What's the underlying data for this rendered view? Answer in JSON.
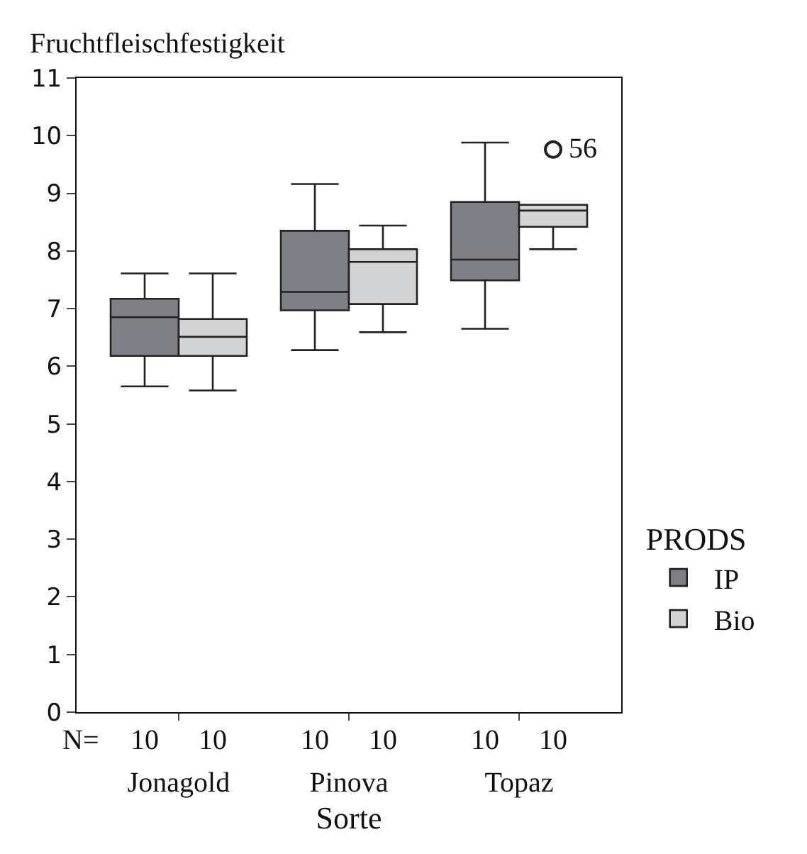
{
  "chart_data": {
    "type": "box",
    "ylabel": "Fruchtfleischfestigkeit",
    "xlabel": "Sorte",
    "legend_title": "PRODS",
    "legend": "right",
    "categories": [
      "Jonagold",
      "Pinova",
      "Topaz"
    ],
    "ylim": [
      0,
      11
    ],
    "yticks": [
      0,
      1,
      2,
      3,
      4,
      5,
      6,
      7,
      8,
      9,
      10,
      11
    ],
    "series": [
      {
        "name": "IP",
        "color": "#7f8085",
        "boxes": [
          {
            "low": 5.65,
            "q1": 6.18,
            "median": 6.85,
            "q3": 7.17,
            "high": 7.61
          },
          {
            "low": 6.28,
            "q1": 6.97,
            "median": 7.29,
            "q3": 8.35,
            "high": 9.16
          },
          {
            "low": 6.65,
            "q1": 7.49,
            "median": 7.85,
            "q3": 8.85,
            "high": 9.88
          }
        ]
      },
      {
        "name": "Bio",
        "color": "#d2d3d5",
        "boxes": [
          {
            "low": 5.58,
            "q1": 6.18,
            "median": 6.51,
            "q3": 6.82,
            "high": 7.61
          },
          {
            "low": 6.59,
            "q1": 7.08,
            "median": 7.81,
            "q3": 8.03,
            "high": 8.44
          },
          {
            "low": 8.03,
            "q1": 8.42,
            "median": 8.7,
            "q3": 8.8,
            "high": 8.8,
            "outliers": [
              9.76
            ]
          }
        ]
      }
    ],
    "annotations": [
      "N=",
      "10",
      "10",
      "10",
      "10",
      "10",
      "10",
      "56"
    ]
  }
}
